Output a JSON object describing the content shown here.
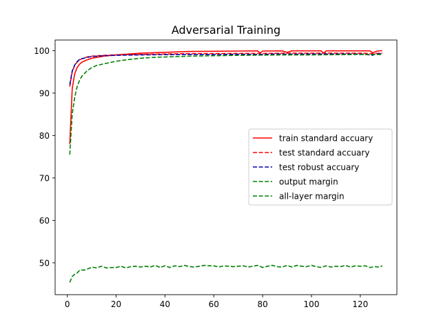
{
  "chart_data": {
    "type": "line",
    "title": "Adversarial Training",
    "xlabel": "",
    "ylabel": "",
    "xlim": [
      -5,
      135
    ],
    "ylim": [
      42.5,
      102.5
    ],
    "xticks": [
      0,
      20,
      40,
      60,
      80,
      100,
      120
    ],
    "yticks": [
      50,
      60,
      70,
      80,
      90,
      100
    ],
    "grid": false,
    "legend_position": "center-right",
    "series": [
      {
        "name": "train standard accuary",
        "color": "#ff0000",
        "dash": "solid",
        "points": [
          [
            1,
            78
          ],
          [
            2,
            91
          ],
          [
            3,
            94.5
          ],
          [
            4,
            96
          ],
          [
            5,
            96.8
          ],
          [
            6,
            97.3
          ],
          [
            8,
            97.8
          ],
          [
            10,
            98.2
          ],
          [
            15,
            98.7
          ],
          [
            20,
            99.0
          ],
          [
            30,
            99.4
          ],
          [
            40,
            99.6
          ],
          [
            50,
            99.8
          ],
          [
            60,
            99.85
          ],
          [
            70,
            99.9
          ],
          [
            78,
            99.95
          ],
          [
            79,
            99.4
          ],
          [
            80,
            99.9
          ],
          [
            88,
            99.95
          ],
          [
            90,
            99.6
          ],
          [
            92,
            99.95
          ],
          [
            104,
            99.95
          ],
          [
            105,
            99.4
          ],
          [
            106,
            99.95
          ],
          [
            124,
            99.95
          ],
          [
            125,
            99.5
          ],
          [
            127,
            99.9
          ],
          [
            129,
            100
          ]
        ]
      },
      {
        "name": "test standard accuary",
        "color": "#ff0000",
        "dash": "dashed",
        "points": [
          [
            1,
            91.5
          ],
          [
            2,
            95
          ],
          [
            3,
            96.5
          ],
          [
            4,
            97.3
          ],
          [
            5,
            97.8
          ],
          [
            6,
            98.1
          ],
          [
            8,
            98.5
          ],
          [
            10,
            98.7
          ],
          [
            15,
            98.9
          ],
          [
            20,
            99.0
          ],
          [
            30,
            99.1
          ],
          [
            40,
            99.2
          ],
          [
            50,
            99.3
          ],
          [
            60,
            99.3
          ],
          [
            70,
            99.35
          ],
          [
            80,
            99.35
          ],
          [
            90,
            99.4
          ],
          [
            100,
            99.4
          ],
          [
            110,
            99.4
          ],
          [
            120,
            99.4
          ],
          [
            125,
            99.3
          ],
          [
            129,
            99.4
          ]
        ]
      },
      {
        "name": "test robust accuary",
        "color": "#0000aa",
        "dash": "dashed",
        "points": [
          [
            1,
            92
          ],
          [
            2,
            95.2
          ],
          [
            3,
            96.6
          ],
          [
            4,
            97.4
          ],
          [
            5,
            97.9
          ],
          [
            6,
            98.1
          ],
          [
            8,
            98.4
          ],
          [
            10,
            98.6
          ],
          [
            15,
            98.8
          ],
          [
            20,
            98.9
          ],
          [
            30,
            99.0
          ],
          [
            40,
            99.05
          ],
          [
            50,
            99.1
          ],
          [
            60,
            99.1
          ],
          [
            70,
            99.15
          ],
          [
            80,
            99.1
          ],
          [
            85,
            99.2
          ],
          [
            90,
            99.15
          ],
          [
            100,
            99.2
          ],
          [
            110,
            99.2
          ],
          [
            120,
            99.2
          ],
          [
            124,
            99.0
          ],
          [
            125,
            98.9
          ],
          [
            126,
            99.2
          ],
          [
            129,
            99.3
          ]
        ]
      },
      {
        "name": "output margin",
        "color": "#008000",
        "dash": "dashed",
        "points": [
          [
            1,
            75.5
          ],
          [
            2,
            85
          ],
          [
            3,
            89
          ],
          [
            4,
            91.5
          ],
          [
            5,
            93
          ],
          [
            6,
            94
          ],
          [
            8,
            95.2
          ],
          [
            10,
            96
          ],
          [
            12,
            96.5
          ],
          [
            15,
            96.9
          ],
          [
            20,
            97.5
          ],
          [
            25,
            97.9
          ],
          [
            30,
            98.2
          ],
          [
            35,
            98.4
          ],
          [
            40,
            98.5
          ],
          [
            50,
            98.7
          ],
          [
            60,
            98.8
          ],
          [
            70,
            98.9
          ],
          [
            80,
            98.95
          ],
          [
            90,
            99.0
          ],
          [
            100,
            99.0
          ],
          [
            110,
            99.05
          ],
          [
            120,
            99.1
          ],
          [
            129,
            99.1
          ]
        ]
      },
      {
        "name": "all-layer margin",
        "color": "#008000",
        "dash": "dashed",
        "points": [
          [
            1,
            45.4
          ],
          [
            2,
            46.8
          ],
          [
            3,
            47.3
          ],
          [
            4,
            47.6
          ],
          [
            5,
            48.2
          ],
          [
            6,
            48.3
          ],
          [
            7,
            48.3
          ],
          [
            8,
            48.5
          ],
          [
            9,
            48.7
          ],
          [
            10,
            49.0
          ],
          [
            12,
            48.8
          ],
          [
            14,
            49.2
          ],
          [
            16,
            48.8
          ],
          [
            18,
            48.9
          ],
          [
            20,
            48.9
          ],
          [
            22,
            49.2
          ],
          [
            24,
            48.8
          ],
          [
            26,
            49.1
          ],
          [
            28,
            49.2
          ],
          [
            30,
            49.0
          ],
          [
            32,
            49.2
          ],
          [
            34,
            49.0
          ],
          [
            36,
            49.4
          ],
          [
            38,
            48.9
          ],
          [
            40,
            49.3
          ],
          [
            42,
            48.9
          ],
          [
            44,
            49.3
          ],
          [
            46,
            49.1
          ],
          [
            48,
            49.4
          ],
          [
            50,
            49.1
          ],
          [
            52,
            49.0
          ],
          [
            54,
            49.2
          ],
          [
            56,
            49.4
          ],
          [
            58,
            49.3
          ],
          [
            60,
            49.3
          ],
          [
            62,
            49.0
          ],
          [
            64,
            49.3
          ],
          [
            66,
            49.2
          ],
          [
            68,
            49.1
          ],
          [
            70,
            49.2
          ],
          [
            72,
            49.3
          ],
          [
            74,
            49.0
          ],
          [
            76,
            49.2
          ],
          [
            78,
            49.4
          ],
          [
            80,
            48.9
          ],
          [
            82,
            49.2
          ],
          [
            84,
            49.4
          ],
          [
            86,
            49.1
          ],
          [
            88,
            49.0
          ],
          [
            90,
            49.4
          ],
          [
            92,
            49.0
          ],
          [
            94,
            49.4
          ],
          [
            96,
            49.2
          ],
          [
            98,
            49.1
          ],
          [
            100,
            49.4
          ],
          [
            102,
            49.1
          ],
          [
            104,
            48.9
          ],
          [
            106,
            49.3
          ],
          [
            108,
            49.0
          ],
          [
            110,
            49.2
          ],
          [
            112,
            49.1
          ],
          [
            114,
            49.4
          ],
          [
            116,
            49.0
          ],
          [
            118,
            49.3
          ],
          [
            120,
            49.2
          ],
          [
            122,
            49.3
          ],
          [
            124,
            48.9
          ],
          [
            126,
            49.1
          ],
          [
            128,
            49.0
          ],
          [
            129,
            49.3
          ]
        ]
      }
    ]
  }
}
